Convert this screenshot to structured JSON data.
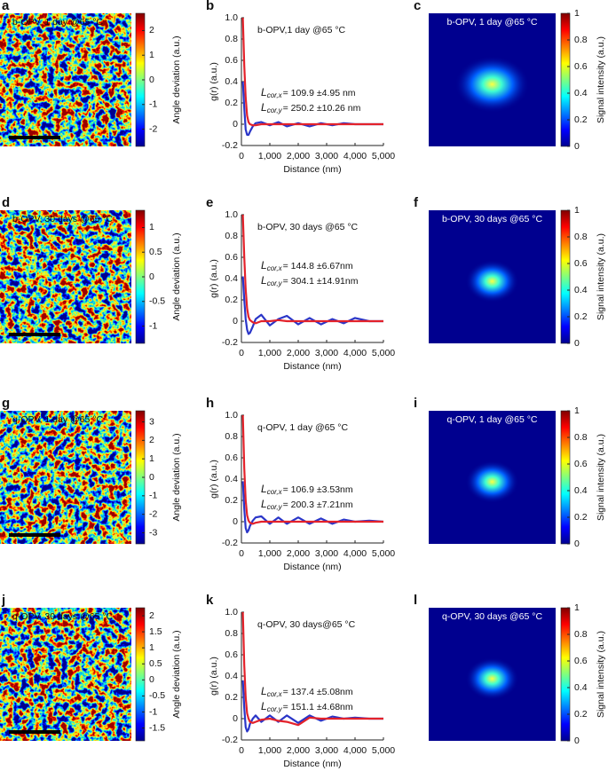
{
  "chart_data": [
    {
      "type": "heatmap",
      "panel_label": "a",
      "title": "b-OPV, 1 day @65 °C",
      "colorbar_label": "Angle deviation (a.u.)",
      "clim": [
        -2.7,
        2.7
      ],
      "cticks": [
        -2,
        -1,
        0,
        1,
        2
      ]
    },
    {
      "type": "line",
      "panel_label": "b",
      "title": "b-OPV,1 day @65 °C",
      "xlabel": "Distance (nm)",
      "ylabel": "g(r) (a.u.)",
      "x": [
        50,
        100,
        150,
        200,
        250,
        300,
        400,
        500,
        700,
        1000,
        1300,
        1600,
        2000,
        2400,
        2800,
        3200,
        3600,
        4000,
        4500,
        5000
      ],
      "series": [
        {
          "color": "#2a35c8",
          "values": [
            0.4,
            0.15,
            -0.05,
            -0.1,
            -0.1,
            -0.07,
            -0.02,
            0.01,
            0.02,
            -0.01,
            0.02,
            -0.02,
            0.01,
            -0.02,
            0.01,
            -0.01,
            0.01,
            0,
            0,
            0
          ]
        },
        {
          "color": "#e3222b",
          "values": [
            1.0,
            0.55,
            0.25,
            0.08,
            0.02,
            0,
            -0.01,
            -0.01,
            0,
            0,
            0,
            0,
            0,
            0,
            0,
            0,
            0,
            0,
            0,
            0
          ]
        }
      ],
      "xlim": [
        0,
        5000
      ],
      "ylim": [
        -0.2,
        1.0
      ],
      "xticks": [
        0,
        {
          "value": 1000,
          "label": "1,000"
        },
        {
          "value": 2000,
          "label": "2,000"
        },
        {
          "value": 3000,
          "label": "3,000"
        },
        {
          "value": 4000,
          "label": "4,000"
        },
        {
          "value": 5000,
          "label": "5,000"
        }
      ],
      "yticks": [
        -0.2,
        0,
        0.2,
        0.4,
        0.6,
        0.8,
        {
          "value": 1,
          "label": "1.0"
        }
      ],
      "annotations": [
        {
          "symbol": "L",
          "subscript": "cor,x",
          "text": "= 109.9 ±4.95 nm"
        },
        {
          "symbol": "L",
          "subscript": "cor,y",
          "text": "= 250.2 ±10.26 nm"
        }
      ]
    },
    {
      "type": "heatmap",
      "panel_label": "c",
      "title": "b-OPV, 1 day @65 °C",
      "colorbar_label": "Signal intensity (a.u.)",
      "clim": [
        0,
        1
      ],
      "cticks": [
        0,
        0.2,
        0.4,
        0.6,
        0.8,
        1
      ]
    },
    {
      "type": "heatmap",
      "panel_label": "d",
      "title": "b-OPV, 30 days @65 °C",
      "colorbar_label": "Angle deviation (a.u.)",
      "clim": [
        -1.35,
        1.35
      ],
      "cticks": [
        -1,
        -0.5,
        0,
        0.5,
        1
      ]
    },
    {
      "type": "line",
      "panel_label": "e",
      "title": "b-OPV, 30 days @65 °C",
      "xlabel": "Distance (nm)",
      "ylabel": "g(r) (a.u.)",
      "x": [
        50,
        100,
        150,
        200,
        250,
        300,
        400,
        500,
        700,
        1000,
        1300,
        1600,
        2000,
        2400,
        2800,
        3200,
        3600,
        4000,
        4500,
        5000
      ],
      "series": [
        {
          "color": "#2a35c8",
          "values": [
            0.42,
            0.2,
            0.02,
            -0.08,
            -0.12,
            -0.11,
            -0.05,
            0.02,
            0.06,
            -0.04,
            0.02,
            0.05,
            -0.03,
            0.03,
            -0.03,
            0.02,
            -0.02,
            0.03,
            0,
            0
          ]
        },
        {
          "color": "#e3222b",
          "values": [
            1.0,
            0.6,
            0.3,
            0.12,
            0.04,
            0.01,
            -0.01,
            -0.02,
            0,
            0,
            0.01,
            0,
            0,
            0,
            0,
            0,
            0,
            0,
            0,
            0
          ]
        }
      ],
      "xlim": [
        0,
        5000
      ],
      "ylim": [
        -0.2,
        1.0
      ],
      "xticks": [
        0,
        {
          "value": 1000,
          "label": "1,000"
        },
        {
          "value": 2000,
          "label": "2,000"
        },
        {
          "value": 3000,
          "label": "3,000"
        },
        {
          "value": 4000,
          "label": "4,000"
        },
        {
          "value": 5000,
          "label": "5,000"
        }
      ],
      "yticks": [
        -0.2,
        0,
        0.2,
        0.4,
        0.6,
        0.8,
        {
          "value": 1,
          "label": "1.0"
        }
      ],
      "annotations": [
        {
          "symbol": "L",
          "subscript": "cor,x",
          "text": "= 144.8 ±6.67nm"
        },
        {
          "symbol": "L",
          "subscript": "cor,y",
          "text": "= 304.1 ±14.91nm"
        }
      ]
    },
    {
      "type": "heatmap",
      "panel_label": "f",
      "title": "b-OPV, 30 days @65 °C",
      "colorbar_label": "Signal intensity (a.u.)",
      "clim": [
        0,
        1
      ],
      "cticks": [
        0,
        0.2,
        0.4,
        0.6,
        0.8,
        1
      ]
    },
    {
      "type": "heatmap",
      "panel_label": "g",
      "title": "q-OPV, 1 day @65 °C",
      "colorbar_label": "Angle deviation (a.u.)",
      "clim": [
        -3.6,
        3.6
      ],
      "cticks": [
        -3,
        -2,
        -1,
        0,
        1,
        2,
        3
      ]
    },
    {
      "type": "line",
      "panel_label": "h",
      "title": "q-OPV, 1 day @65 °C",
      "xlabel": "Distance (nm)",
      "ylabel": "g(r) (a.u.)",
      "x": [
        50,
        100,
        150,
        200,
        250,
        300,
        400,
        500,
        700,
        1000,
        1300,
        1600,
        2000,
        2400,
        2800,
        3200,
        3600,
        4000,
        4500,
        5000
      ],
      "series": [
        {
          "color": "#2a35c8",
          "values": [
            0.38,
            0.12,
            -0.06,
            -0.1,
            -0.08,
            -0.04,
            0.01,
            0.04,
            0.05,
            -0.02,
            0.04,
            -0.02,
            0.04,
            -0.02,
            0.03,
            -0.02,
            0.02,
            0,
            0.01,
            0
          ]
        },
        {
          "color": "#e3222b",
          "values": [
            1.0,
            0.5,
            0.2,
            0.06,
            0.01,
            -0.01,
            -0.02,
            -0.01,
            0,
            0,
            0,
            0,
            0,
            0,
            0,
            0,
            0,
            0,
            0,
            0
          ]
        }
      ],
      "xlim": [
        0,
        5000
      ],
      "ylim": [
        -0.2,
        1.0
      ],
      "xticks": [
        0,
        {
          "value": 1000,
          "label": "1,000"
        },
        {
          "value": 2000,
          "label": "2,000"
        },
        {
          "value": 3000,
          "label": "3,000"
        },
        {
          "value": 4000,
          "label": "4,000"
        },
        {
          "value": 5000,
          "label": "5,000"
        }
      ],
      "yticks": [
        -0.2,
        0,
        0.2,
        0.4,
        0.6,
        0.8,
        {
          "value": 1,
          "label": "1.0"
        }
      ],
      "annotations": [
        {
          "symbol": "L",
          "subscript": "cor,x",
          "text": "= 106.9 ±3.53nm"
        },
        {
          "symbol": "L",
          "subscript": "cor,y",
          "text": "= 200.3 ±7.21nm"
        }
      ]
    },
    {
      "type": "heatmap",
      "panel_label": "i",
      "title": "q-OPV, 1 day @65 °C",
      "colorbar_label": "Signal intensity (a.u.)",
      "clim": [
        0,
        1
      ],
      "cticks": [
        0,
        0.2,
        0.4,
        0.6,
        0.8,
        1
      ]
    },
    {
      "type": "heatmap",
      "panel_label": "j",
      "title": "q-OPV, 30 days @65 °C",
      "colorbar_label": "Angle deviation (a.u.)",
      "clim": [
        -1.9,
        2.25
      ],
      "cticks": [
        -1.5,
        -1,
        -0.5,
        0,
        0.5,
        1,
        1.5,
        2
      ]
    },
    {
      "type": "line",
      "panel_label": "k",
      "title": "q-OPV, 30 days@65 °C",
      "xlabel": "Distance (nm)",
      "ylabel": "g(r) (a.u.)",
      "x": [
        50,
        100,
        150,
        200,
        250,
        300,
        400,
        500,
        700,
        1000,
        1300,
        1600,
        2000,
        2400,
        2800,
        3200,
        3600,
        4000,
        4500,
        5000
      ],
      "series": [
        {
          "color": "#2a35c8",
          "values": [
            0.36,
            0.1,
            -0.08,
            -0.12,
            -0.1,
            -0.05,
            0,
            0.03,
            -0.03,
            0.03,
            -0.03,
            0.03,
            -0.04,
            0.03,
            -0.02,
            0.02,
            0,
            0.01,
            0,
            0
          ]
        },
        {
          "color": "#e3222b",
          "values": [
            1.0,
            0.5,
            0.2,
            0.05,
            0,
            -0.03,
            -0.04,
            -0.03,
            -0.01,
            0,
            -0.02,
            -0.03,
            -0.06,
            0.01,
            0,
            0,
            0,
            0,
            0,
            0
          ]
        }
      ],
      "xlim": [
        0,
        5000
      ],
      "ylim": [
        -0.2,
        1.0
      ],
      "xticks": [
        0,
        {
          "value": 1000,
          "label": "1,000"
        },
        {
          "value": 2000,
          "label": "2,000"
        },
        {
          "value": 3000,
          "label": "3,000"
        },
        {
          "value": 4000,
          "label": "4,000"
        },
        {
          "value": 5000,
          "label": "5,000"
        }
      ],
      "yticks": [
        -0.2,
        0,
        0.2,
        0.4,
        0.6,
        0.8,
        {
          "value": 1,
          "label": "1.0"
        }
      ],
      "annotations": [
        {
          "symbol": "L",
          "subscript": "cor,x",
          "text": "= 137.4 ±5.08nm"
        },
        {
          "symbol": "L",
          "subscript": "cor,y",
          "text": "= 151.1 ±4.68nm"
        }
      ]
    },
    {
      "type": "heatmap",
      "panel_label": "l",
      "title": "q-OPV, 30 days @65 °C",
      "colorbar_label": "Signal intensity (a.u.)",
      "clim": [
        0,
        1
      ],
      "cticks": [
        0,
        0.2,
        0.4,
        0.6,
        0.8,
        1
      ]
    }
  ]
}
